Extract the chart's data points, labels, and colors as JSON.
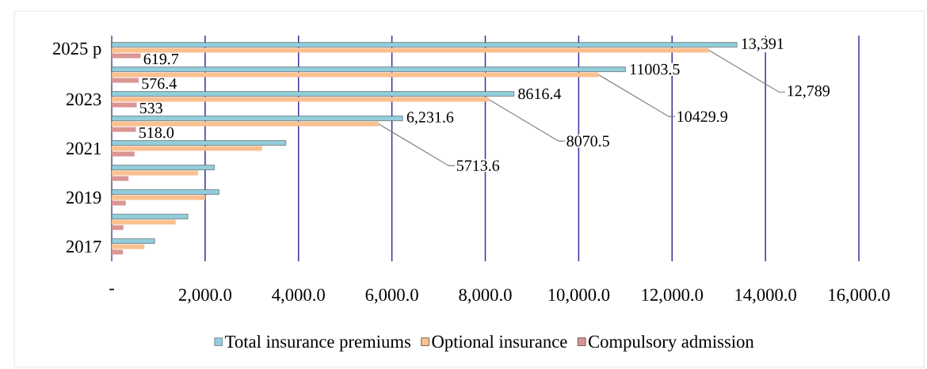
{
  "chart_data": {
    "type": "bar",
    "orientation": "horizontal",
    "categories": [
      "2025 p",
      null,
      "2023",
      null,
      "2021",
      null,
      "2019",
      null,
      "2017"
    ],
    "series": [
      {
        "name": "Total insurance premiums",
        "color": "#92cddc",
        "values": [
          13391,
          11003.5,
          8616.4,
          6231.6,
          3730,
          2200,
          2300,
          1630,
          920
        ],
        "value_labels": [
          "13,391",
          "11003.5",
          "8616.4",
          "6,231.6",
          null,
          null,
          null,
          null,
          null
        ]
      },
      {
        "name": "Optional insurance",
        "color": "#fac090",
        "values": [
          12789,
          10429.9,
          8070.5,
          5713.6,
          3220,
          1850,
          2000,
          1370,
          700
        ],
        "value_labels": [
          "12,789",
          "10429.9",
          "8070.5",
          "5713.6",
          null,
          null,
          null,
          null,
          null
        ]
      },
      {
        "name": "Compulsory admission",
        "color": "#d99694",
        "values": [
          619.7,
          576.4,
          533,
          518.0,
          490,
          360,
          300,
          250,
          240
        ],
        "value_labels": [
          "619.7",
          "576.4",
          "533",
          "518.0",
          null,
          null,
          null,
          null,
          null
        ]
      }
    ],
    "xlim": [
      0,
      16000
    ],
    "xticks": [
      {
        "value": 0,
        "label": "-"
      },
      {
        "value": 2000,
        "label": "2,000.0"
      },
      {
        "value": 4000,
        "label": "4,000.0"
      },
      {
        "value": 6000,
        "label": "6,000.0"
      },
      {
        "value": 8000,
        "label": "8,000.0"
      },
      {
        "value": 10000,
        "label": "10,000.0"
      },
      {
        "value": 12000,
        "label": "12,000.0"
      },
      {
        "value": 14000,
        "label": "14,000.0"
      },
      {
        "value": 16000,
        "label": "16,000.0"
      }
    ],
    "grid": "x",
    "legend": "bottom"
  }
}
